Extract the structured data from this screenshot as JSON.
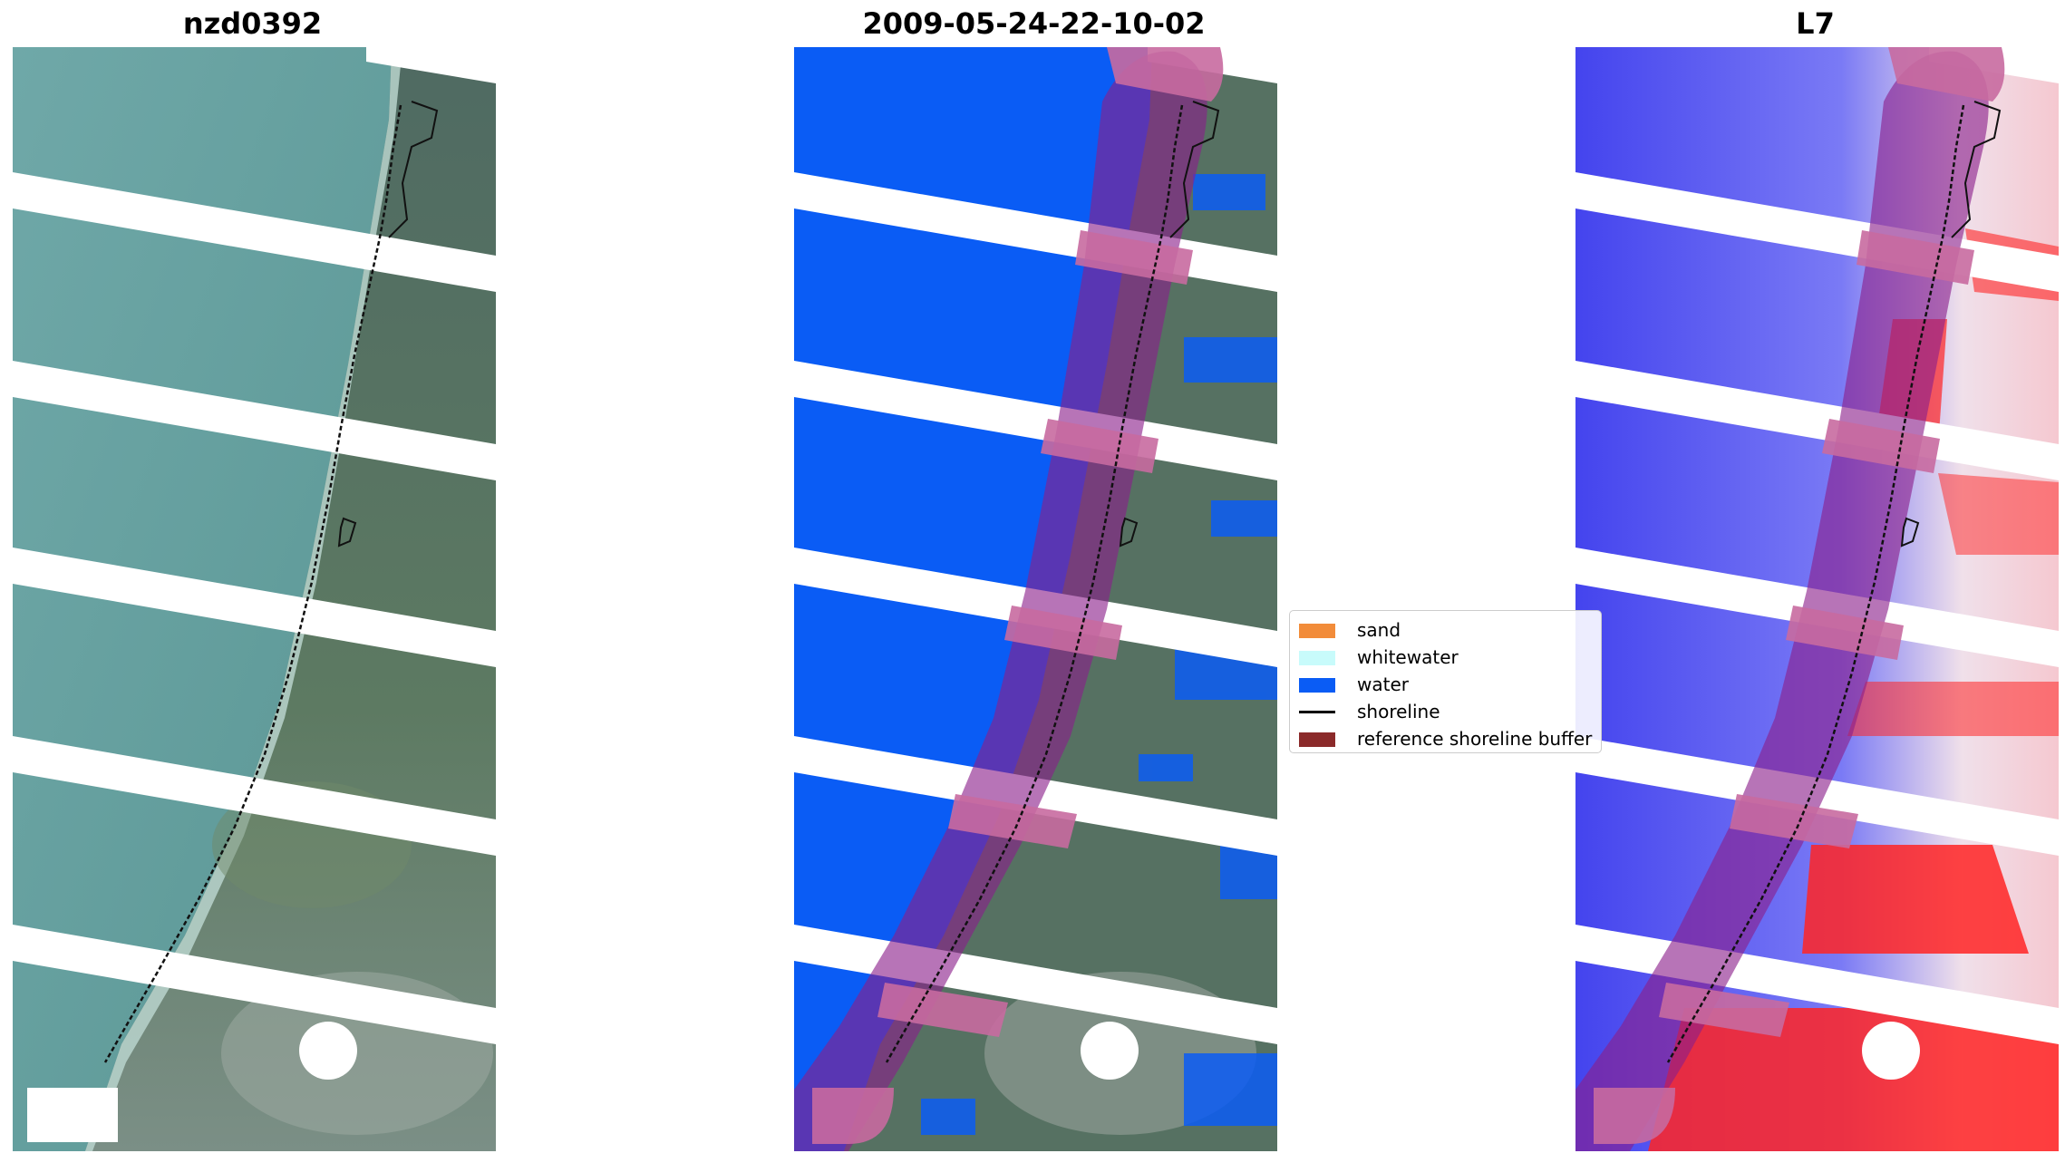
{
  "titles": {
    "left": "nzd0392",
    "middle": "2009-05-24-22-10-02",
    "right": "L7"
  },
  "legend": {
    "items": [
      {
        "label": "sand",
        "color": "#f28c3a",
        "kind": "patch"
      },
      {
        "label": "whitewater",
        "color": "#c8fbfb",
        "kind": "patch"
      },
      {
        "label": "water",
        "color": "#0a5cf5",
        "kind": "patch"
      },
      {
        "label": "shoreline",
        "color": "#000000",
        "kind": "line"
      },
      {
        "label": "reference shoreline buffer",
        "color": "#8b2a2a",
        "kind": "patch"
      }
    ]
  },
  "colors": {
    "ocean": "#5f9ea0",
    "land": "#4f6d60",
    "sand_strip": "#c8d8d0",
    "water_class": "#0a5cf5",
    "buffer_overlay": "#9b3f8b",
    "index_low": "#3f3ff0",
    "index_high": "#ff2020",
    "scan_gap": "#ffffff"
  }
}
